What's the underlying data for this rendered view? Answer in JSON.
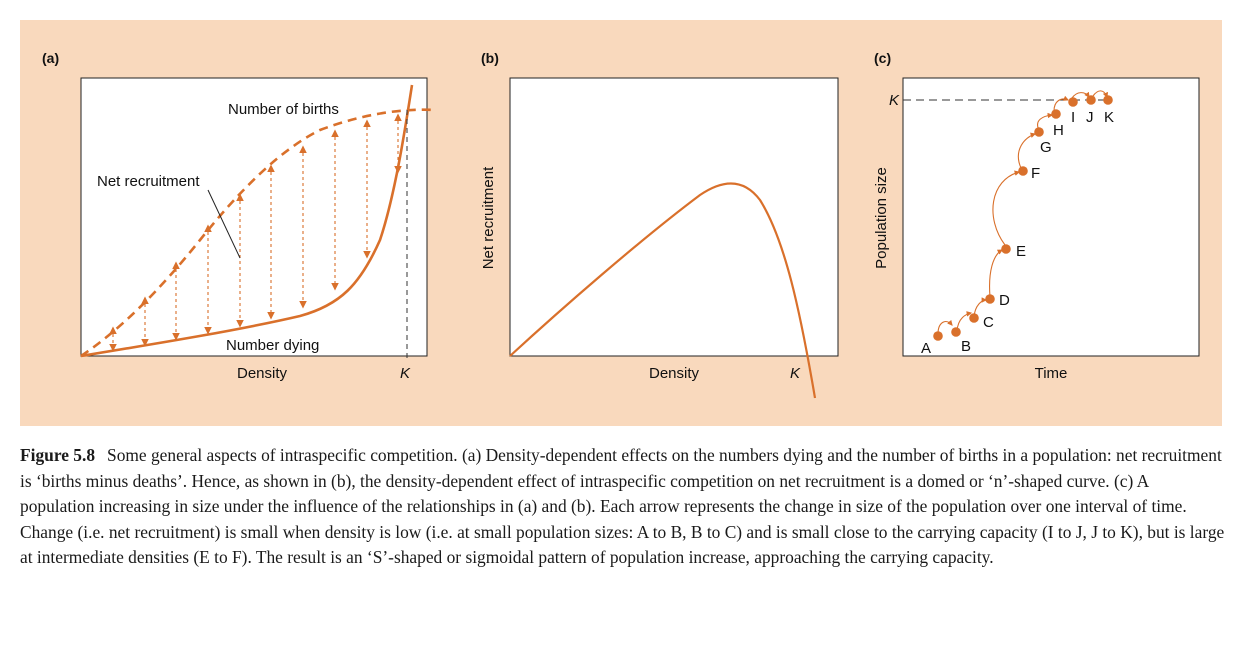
{
  "panels": {
    "a": {
      "label": "(a)",
      "births_label": "Number of births",
      "net_label": "Net recruitment",
      "dying_label": "Number dying",
      "xlabel": "Density",
      "k_label": "K"
    },
    "b": {
      "label": "(b)",
      "ylabel": "Net recruitment",
      "xlabel": "Density",
      "k_label": "K"
    },
    "c": {
      "label": "(c)",
      "ylabel": "Population size",
      "xlabel": "Time",
      "k_label": "K",
      "points": [
        "A",
        "B",
        "C",
        "D",
        "E",
        "F",
        "G",
        "H",
        "I",
        "J",
        "K"
      ]
    }
  },
  "colors": {
    "curve": "#d9702b",
    "background": "#f9d9bd",
    "plot": "#ffffff"
  },
  "caption": {
    "figure_label": "Figure 5.8",
    "text": "Some general aspects of intraspecific competition. (a) Density-dependent effects on the numbers dying and the number of births in a population: net recruitment is ‘births minus deaths’. Hence, as shown in (b), the density-dependent effect of intraspecific competition on net recruitment is a domed or ‘n’-shaped curve. (c) A population increasing in size under the influence of the relationships in (a) and (b). Each arrow represents the change in size of the population over one interval of time. Change (i.e. net recruitment) is small when density is low (i.e. at small population sizes: A to B, B to C) and is small close to the carrying capacity (I to J, J to K), but is large at intermediate densities (E to F). The result is an ‘S’-shaped or sigmoidal pattern of population increase, approaching the carrying capacity."
  }
}
